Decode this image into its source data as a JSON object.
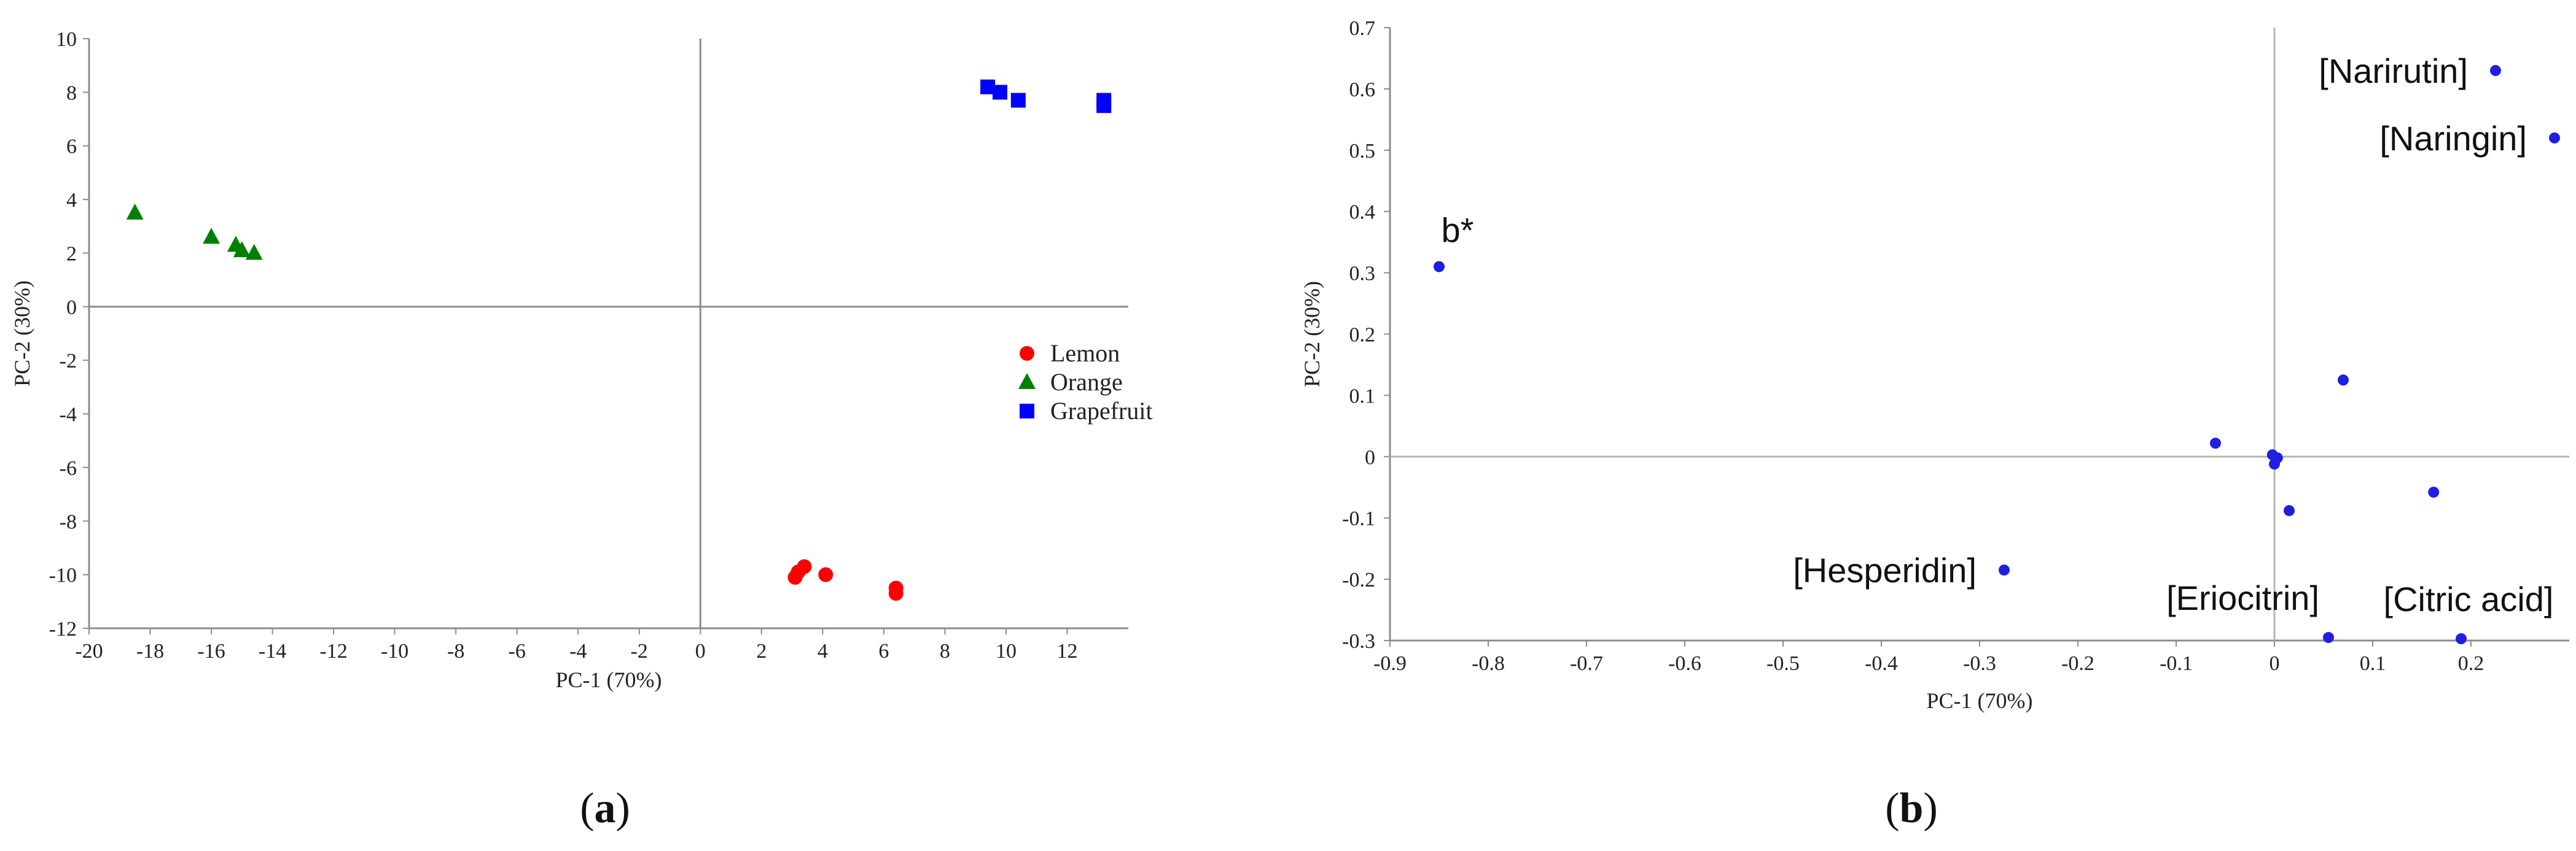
{
  "chart_data": [
    {
      "id": "a",
      "type": "scatter",
      "caption": {
        "open": "(",
        "label": "a",
        "close": ")"
      },
      "xlabel": "PC-1 (70%)",
      "ylabel": "PC-2 (30%)",
      "xlim": [
        -20,
        14
      ],
      "ylim": [
        -12,
        10
      ],
      "xticks": [
        -20,
        -18,
        -16,
        -14,
        -12,
        -10,
        -8,
        -6,
        -4,
        -2,
        0,
        2,
        4,
        6,
        8,
        10,
        12
      ],
      "yticks": [
        -12,
        -10,
        -8,
        -6,
        -4,
        -2,
        0,
        2,
        4,
        6,
        8,
        10
      ],
      "legend_position": "right-middle",
      "series": [
        {
          "name": "Lemon",
          "marker": "circle",
          "color": "#ff0000",
          "points": [
            [
              3.1,
              -10.1
            ],
            [
              3.4,
              -9.7
            ],
            [
              3.2,
              -9.9
            ],
            [
              4.1,
              -10.0
            ],
            [
              6.4,
              -10.5
            ],
            [
              6.4,
              -10.7
            ]
          ]
        },
        {
          "name": "Orange",
          "marker": "triangle",
          "color": "#008000",
          "points": [
            [
              -18.5,
              3.5
            ],
            [
              -16.0,
              2.6
            ],
            [
              -15.2,
              2.3
            ],
            [
              -15.0,
              2.1
            ],
            [
              -14.6,
              2.0
            ]
          ]
        },
        {
          "name": "Grapefruit",
          "marker": "square",
          "color": "#0000ff",
          "points": [
            [
              9.4,
              8.2
            ],
            [
              9.8,
              8.0
            ],
            [
              10.4,
              7.7
            ],
            [
              13.2,
              7.7
            ],
            [
              13.2,
              7.5
            ]
          ]
        }
      ]
    },
    {
      "id": "b",
      "type": "scatter",
      "caption": {
        "open": "(",
        "label": "b",
        "close": ")"
      },
      "xlabel": "PC-1 (70%)",
      "ylabel": "PC-2 (30%)",
      "xlim": [
        -0.9,
        0.3
      ],
      "ylim": [
        -0.3,
        0.7
      ],
      "xticks": [
        "-0.9",
        "-0.8",
        "-0.7",
        "-0.6",
        "-0.5",
        "-0.4",
        "-0.3",
        "-0.2",
        "-0.1",
        "0",
        "0.1",
        "0.2"
      ],
      "yticks": [
        "-0.3",
        "-0.2",
        "-0.1",
        "0",
        "0.1",
        "0.2",
        "0.3",
        "0.4",
        "0.5",
        "0.6",
        "0.7"
      ],
      "point_color": "#1f1fdf",
      "points": [
        {
          "label": "[Narirutin]",
          "x": 0.225,
          "y": 0.63,
          "label_side": "left"
        },
        {
          "label": "[Naringin]",
          "x": 0.285,
          "y": 0.52,
          "label_side": "left"
        },
        {
          "label": "b*",
          "x": -0.85,
          "y": 0.31,
          "label_side": "above"
        },
        {
          "label": "[Hesperidin]",
          "x": -0.275,
          "y": -0.185,
          "label_side": "left"
        },
        {
          "label": "[Eriocitrin]",
          "x": 0.055,
          "y": -0.295,
          "label_side": "above-left"
        },
        {
          "label": "[Citric acid]",
          "x": 0.19,
          "y": -0.297,
          "label_side": "above"
        },
        {
          "label": "",
          "x": 0.07,
          "y": 0.125
        },
        {
          "label": "",
          "x": -0.06,
          "y": 0.022
        },
        {
          "label": "",
          "x": -0.002,
          "y": 0.003
        },
        {
          "label": "",
          "x": 0.003,
          "y": -0.002
        },
        {
          "label": "",
          "x": 0.0,
          "y": -0.012
        },
        {
          "label": "",
          "x": 0.015,
          "y": -0.088
        },
        {
          "label": "",
          "x": 0.162,
          "y": -0.058
        }
      ]
    }
  ]
}
